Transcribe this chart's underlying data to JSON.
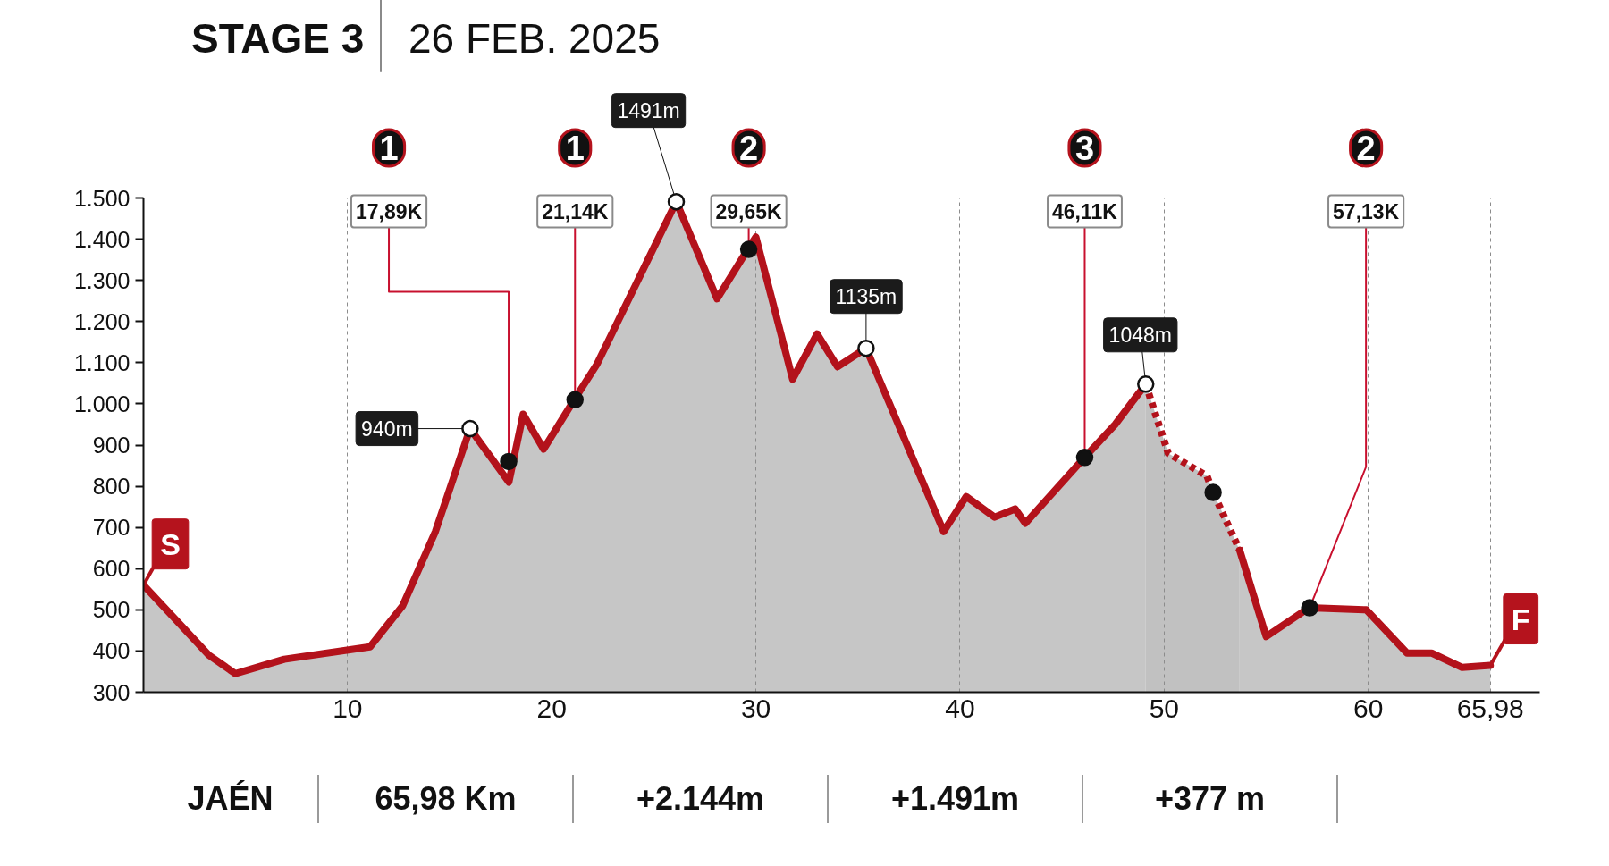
{
  "chart_data": {
    "type": "area",
    "title": "STAGE 3",
    "subtitle": "26 FEB. 2025",
    "xlim": [
      0,
      68.4
    ],
    "xticks": [
      10,
      20,
      30,
      40,
      50,
      60,
      {
        "value": 65.98,
        "label": "65,98"
      }
    ],
    "ylim": [
      300,
      1500
    ],
    "yticks": [
      300,
      400,
      500,
      600,
      700,
      800,
      900,
      {
        "value": 1000,
        "label": "1.000"
      },
      {
        "value": 1100,
        "label": "1.100"
      },
      {
        "value": 1200,
        "label": "1.200"
      },
      {
        "value": 1300,
        "label": "1.300"
      },
      {
        "value": 1400,
        "label": "1.400"
      },
      {
        "value": 1500,
        "label": "1.500"
      }
    ],
    "grid": "x",
    "x": [
      0,
      3.2,
      4.5,
      6.9,
      11.1,
      12.7,
      14.3,
      16.0,
      17.9,
      18.6,
      19.6,
      21.1,
      22.2,
      26.1,
      28.1,
      29.6,
      30.0,
      31.8,
      33.0,
      34.0,
      35.4,
      39.2,
      40.3,
      41.7,
      42.7,
      43.2,
      46.1,
      47.6,
      49.1,
      50.2,
      52.1,
      52.4,
      53.7,
      55.0,
      57.1,
      59.9,
      61.9,
      63.1,
      64.6,
      65.98
    ],
    "series": [
      {
        "color": "#c6c6c6",
        "values": [
          560,
          390,
          345,
          380,
          410,
          510,
          690,
          940,
          810,
          975,
          890,
          1010,
          1095,
          1491,
          1255,
          1375,
          1405,
          1060,
          1170,
          1090,
          1135,
          690,
          775,
          725,
          745,
          710,
          870,
          950,
          1048,
          null,
          null,
          null,
          645,
          435,
          505,
          500,
          395,
          395,
          360,
          365
        ]
      },
      {
        "type": "area",
        "line_style": "dashed",
        "color": "#c1c1c1",
        "x": [
          49.1,
          50.2,
          52.1,
          52.4,
          53.7
        ],
        "values": [
          1048,
          880,
          825,
          785,
          645
        ]
      },
      {
        "type": "scatter",
        "marker": "circle",
        "color": "#ffffff",
        "x": [
          16.0,
          26.1,
          35.4,
          49.1
        ],
        "values": [
          940,
          1491,
          1135,
          1048
        ],
        "value_labels": [
          "940m",
          "1491m",
          "1135m",
          "1048m"
        ]
      },
      {
        "type": "scatter",
        "marker": "circle",
        "color": "#111111",
        "x": [
          17.89,
          21.14,
          29.65,
          46.11,
          52.4,
          57.13
        ],
        "values": [
          860,
          1010,
          1375,
          870,
          785,
          505
        ]
      }
    ],
    "annotations": [
      {
        "text": "17,89K",
        "x": 17.89,
        "y": 860
      },
      {
        "text": "21,14K",
        "x": 21.14,
        "y": 1010
      },
      {
        "text": "29,65K",
        "x": 29.65,
        "y": 1375
      },
      {
        "text": "46,11K",
        "x": 46.11,
        "y": 870
      },
      {
        "text": "57,13K",
        "x": 57.13,
        "y": 505
      },
      {
        "text": "S",
        "x": 0,
        "y": 560
      },
      {
        "text": "F",
        "x": 65.98,
        "y": 365
      },
      "1",
      "1",
      "2",
      "3",
      "2",
      "JAÉN",
      "65,98 Km",
      "+2.144m",
      "+1.491m",
      "+377 m"
    ]
  }
}
